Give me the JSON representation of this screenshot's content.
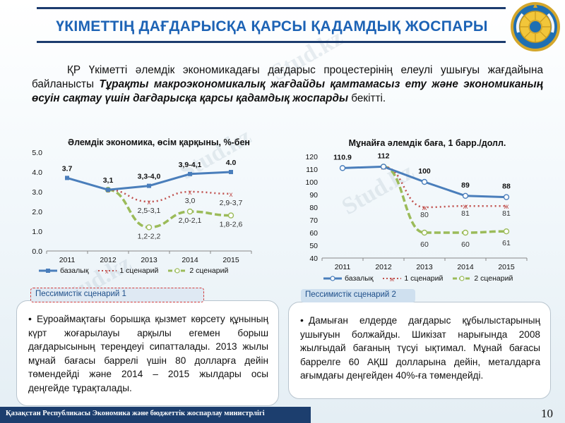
{
  "slide": {
    "title": "ҮКІМЕТТІҢ ДАҒДАРЫСҚА ҚАРСЫ ҚАДАМДЫҚ ЖОСПАРЫ",
    "intro_start": "ҚР Үкіметті әлемдік экономикадағы дағдарыс процестерінің елеулі ушығуы жағдайына байланысты ",
    "intro_bold": "Тұрақты макроэкономикалық жағдайды қамтамасыз ету және экономиканың өсуін сақтау үшін дағдарысқа қарсы қадамдық жоспарды",
    "intro_end": " бекітті.",
    "watermark": "Stud.kz",
    "footer": "Қазақстан Республикасы Экономика және бюджеттік жоспарлау министрлігі",
    "page_number": "10"
  },
  "colors": {
    "base": "#4a7ebb",
    "scenario1": "#c0504d",
    "scenario2": "#9bbb59",
    "title": "#1d63b5"
  },
  "chart_data": [
    {
      "type": "line",
      "title": "Әлемдік экономика, өсім қарқыны, %-бен",
      "categories": [
        "2011",
        "2012",
        "2013",
        "2014",
        "2015"
      ],
      "ylim": [
        0,
        5
      ],
      "yticks": [
        "0.0",
        "1.0",
        "2.0",
        "3.0",
        "4.0",
        "5.0"
      ],
      "ytick_values": [
        0,
        1,
        2,
        3,
        4,
        5
      ],
      "series": [
        {
          "name": "базалық",
          "values": [
            3.7,
            3.1,
            3.3,
            3.9,
            4.0
          ]
        },
        {
          "name": "1 сценарий",
          "values": [
            null,
            3.1,
            2.5,
            3.0,
            2.9
          ]
        },
        {
          "name": "2 сценарий",
          "values": [
            null,
            3.1,
            1.2,
            2.0,
            1.8
          ]
        }
      ],
      "labels": [
        {
          "text": "3.7",
          "x": 0,
          "y": 3.7,
          "series": 0
        },
        {
          "text": "3,1",
          "x": 1,
          "y": 3.1,
          "series": 0
        },
        {
          "text": "3,3-4,0",
          "x": 2,
          "y": 3.3,
          "series": 0
        },
        {
          "text": "3,9-4,1",
          "x": 3,
          "y": 3.9,
          "series": 0
        },
        {
          "text": "4.0",
          "x": 4,
          "y": 4.0,
          "series": 0
        },
        {
          "text": "2,5-3,1",
          "x": 2,
          "y": 2.5,
          "series": 1
        },
        {
          "text": "3,0",
          "x": 3,
          "y": 3.0,
          "series": 1
        },
        {
          "text": "2,9-3,7",
          "x": 4,
          "y": 2.9,
          "series": 1
        },
        {
          "text": "1,2-2,2",
          "x": 2,
          "y": 1.2,
          "series": 2
        },
        {
          "text": "2,0-2,1",
          "x": 3,
          "y": 2.0,
          "series": 2
        },
        {
          "text": "1,8-2,6",
          "x": 4,
          "y": 1.8,
          "series": 2
        }
      ],
      "legend": "bottom"
    },
    {
      "type": "line",
      "title": "Мұнайға әлемдік баға, 1 барр./долл.",
      "categories": [
        "2011",
        "2012",
        "2013",
        "2014",
        "2015"
      ],
      "ylim": [
        40,
        120
      ],
      "yticks": [
        "40",
        "50",
        "60",
        "70",
        "80",
        "90",
        "100",
        "110",
        "120"
      ],
      "ytick_values": [
        40,
        50,
        60,
        70,
        80,
        90,
        100,
        110,
        120
      ],
      "series": [
        {
          "name": "базалық",
          "values": [
            110.9,
            112,
            100,
            89,
            88
          ]
        },
        {
          "name": "1 сценарий",
          "values": [
            null,
            112,
            80,
            81,
            81
          ]
        },
        {
          "name": "2 сценарий",
          "values": [
            null,
            112,
            60,
            60,
            61
          ]
        }
      ],
      "labels": [
        {
          "text": "110.9",
          "x": 0,
          "y": 110.9,
          "series": 0
        },
        {
          "text": "112",
          "x": 1,
          "y": 112,
          "series": 0
        },
        {
          "text": "100",
          "x": 2,
          "y": 100,
          "series": 0
        },
        {
          "text": "89",
          "x": 3,
          "y": 89,
          "series": 0
        },
        {
          "text": "88",
          "x": 4,
          "y": 88,
          "series": 0
        },
        {
          "text": "80",
          "x": 2,
          "y": 80,
          "series": 1
        },
        {
          "text": "81",
          "x": 3,
          "y": 81,
          "series": 1
        },
        {
          "text": "81",
          "x": 4,
          "y": 81,
          "series": 1
        },
        {
          "text": "60",
          "x": 2,
          "y": 60,
          "series": 2
        },
        {
          "text": "60",
          "x": 3,
          "y": 60,
          "series": 2
        },
        {
          "text": "61",
          "x": 4,
          "y": 61,
          "series": 2
        }
      ],
      "legend": "bottom"
    }
  ],
  "scenarios": [
    {
      "tag": "Пессимистік сценарий 1",
      "text": "Еуроаймақтағы борышқа қызмет көрсету құнының күрт жоғарылауы арқылы егемен борыш дағдарысының тереңдеуі сипатталады. 2013 жылы мұнай бағасы баррелі үшін 80 долларға дейін төмендейді және 2014 – 2015 жылдары осы деңгейде тұрақталады."
    },
    {
      "tag": "Пессимистік сценарий 2",
      "text": "Дамыған елдерде дағдарыс құбылыстарының ушығуын болжайды. Шикізат нарығында 2008 жылғыдай бағаның түсуі ықтимал. Мұнай бағасы баррелге 60 АҚШ долларына дейін, металдарға ағымдағы деңгейден 40%-ға төмендейді."
    }
  ]
}
